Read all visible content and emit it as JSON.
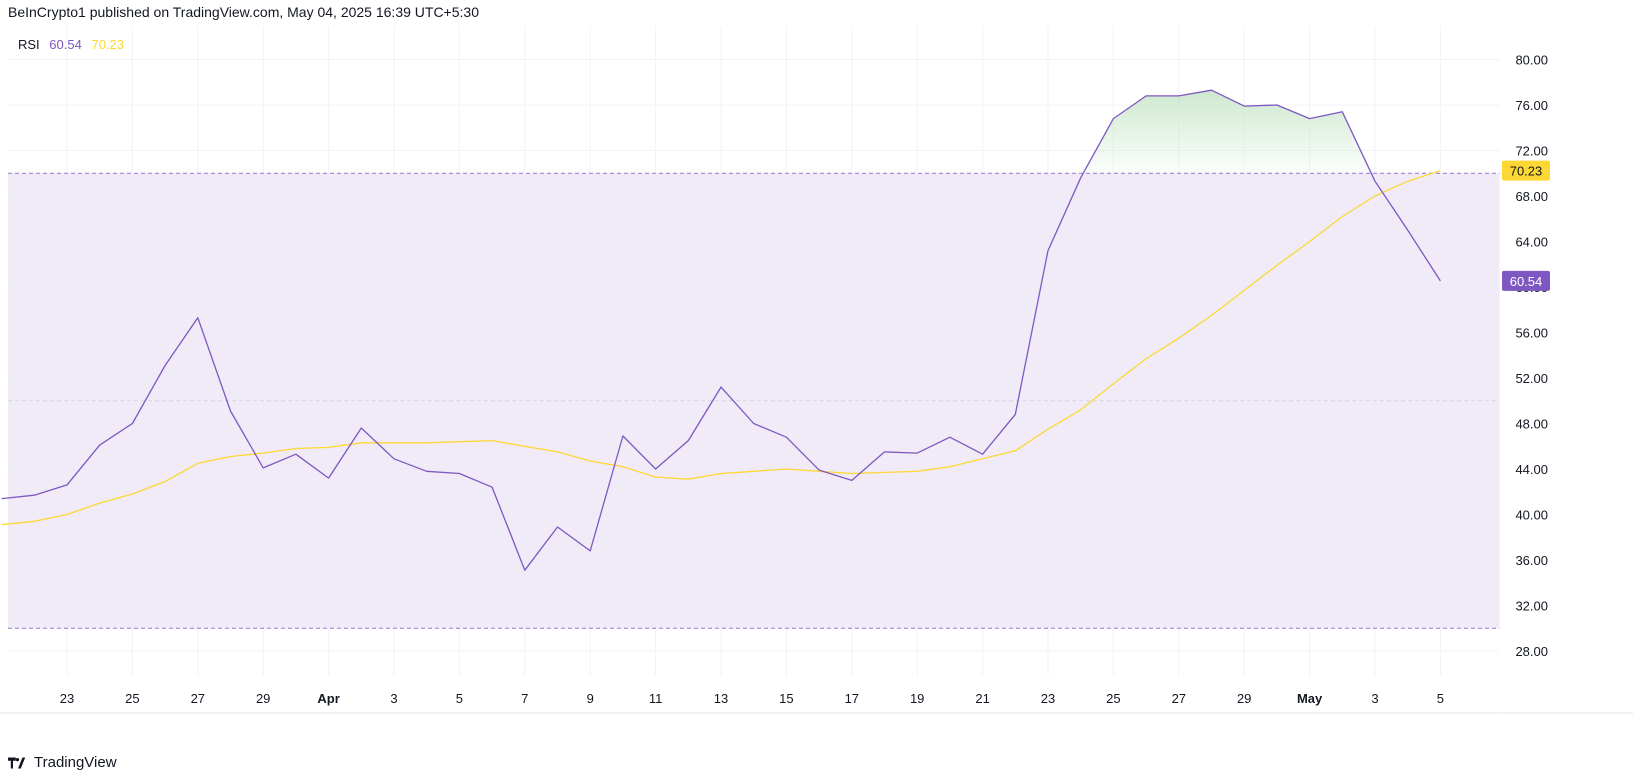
{
  "header": {
    "published_text": "BeInCrypto1 published on TradingView.com, May 04, 2025 16:39 UTC+5:30"
  },
  "legend": {
    "indicator": "RSI",
    "rsi_value": "60.54",
    "ma_value": "70.23"
  },
  "footer": {
    "brand": "TradingView",
    "logo_icon": "tradingview-logo-icon"
  },
  "colors": {
    "rsi": "#7e57c2",
    "ma": "#fdd835",
    "band": "#ede7f6",
    "overbought_fill": "#c8e6c9",
    "grid": "#f0f3fa"
  },
  "chart_data": {
    "type": "line",
    "x_tick_labels": [
      "23",
      "25",
      "27",
      "29",
      "Apr",
      "3",
      "5",
      "7",
      "9",
      "11",
      "13",
      "15",
      "17",
      "19",
      "21",
      "23",
      "25",
      "27",
      "29",
      "May",
      "3",
      "5"
    ],
    "y_tick_labels": [
      "28.00",
      "32.00",
      "36.00",
      "40.00",
      "44.00",
      "48.00",
      "52.00",
      "56.00",
      "60.00",
      "64.00",
      "68.00",
      "72.00",
      "76.00",
      "80.00"
    ],
    "ylim": [
      25.5,
      83.0
    ],
    "x_dates": [
      "2025-03-21",
      "2025-03-22",
      "2025-03-23",
      "2025-03-24",
      "2025-03-25",
      "2025-03-26",
      "2025-03-27",
      "2025-03-28",
      "2025-03-29",
      "2025-03-30",
      "2025-03-31",
      "2025-04-01",
      "2025-04-02",
      "2025-04-03",
      "2025-04-04",
      "2025-04-05",
      "2025-04-06",
      "2025-04-07",
      "2025-04-08",
      "2025-04-09",
      "2025-04-10",
      "2025-04-11",
      "2025-04-12",
      "2025-04-13",
      "2025-04-14",
      "2025-04-15",
      "2025-04-16",
      "2025-04-17",
      "2025-04-18",
      "2025-04-19",
      "2025-04-20",
      "2025-04-21",
      "2025-04-22",
      "2025-04-23",
      "2025-04-24",
      "2025-04-25",
      "2025-04-26",
      "2025-04-27",
      "2025-04-28",
      "2025-04-29",
      "2025-04-30",
      "2025-05-01",
      "2025-05-02",
      "2025-05-03",
      "2025-05-04"
    ],
    "series": [
      {
        "name": "RSI",
        "color": "#7e57c2",
        "values": [
          41.4,
          41.7,
          42.6,
          46.1,
          48.0,
          53.1,
          57.3,
          49.1,
          44.1,
          45.3,
          43.2,
          47.6,
          44.9,
          43.8,
          43.6,
          42.4,
          35.1,
          38.9,
          36.8,
          46.9,
          44.0,
          46.5,
          51.2,
          48.0,
          46.8,
          43.9,
          43.0,
          45.5,
          45.4,
          46.8,
          45.3,
          48.8,
          63.2,
          69.6,
          74.8,
          76.8,
          76.8,
          77.3,
          75.9,
          76.0,
          74.8,
          75.4,
          69.3,
          65.0,
          60.54
        ]
      },
      {
        "name": "",
        "color": "#fdd835",
        "values": [
          39.1,
          39.4,
          40.0,
          41.0,
          41.8,
          42.9,
          44.5,
          45.1,
          45.4,
          45.8,
          45.9,
          46.3,
          46.3,
          46.3,
          46.4,
          46.5,
          46.0,
          45.5,
          44.7,
          44.2,
          43.3,
          43.1,
          43.6,
          43.8,
          44.0,
          43.8,
          43.6,
          43.7,
          43.8,
          44.2,
          44.9,
          45.6,
          47.5,
          49.2,
          51.5,
          53.7,
          55.5,
          57.5,
          59.7,
          61.9,
          64.0,
          66.2,
          68.0,
          69.3,
          70.23
        ]
      }
    ],
    "reference_lines": [
      70,
      50,
      30
    ],
    "band": [
      30,
      70
    ],
    "price_tags": [
      {
        "label": "70.23",
        "value": 70.23,
        "color": "#fdd835",
        "text_color": "#131722"
      },
      {
        "label": "60.54",
        "value": 60.54,
        "color": "#7e57c2",
        "text_color": "#ffffff"
      }
    ],
    "grid": true
  }
}
